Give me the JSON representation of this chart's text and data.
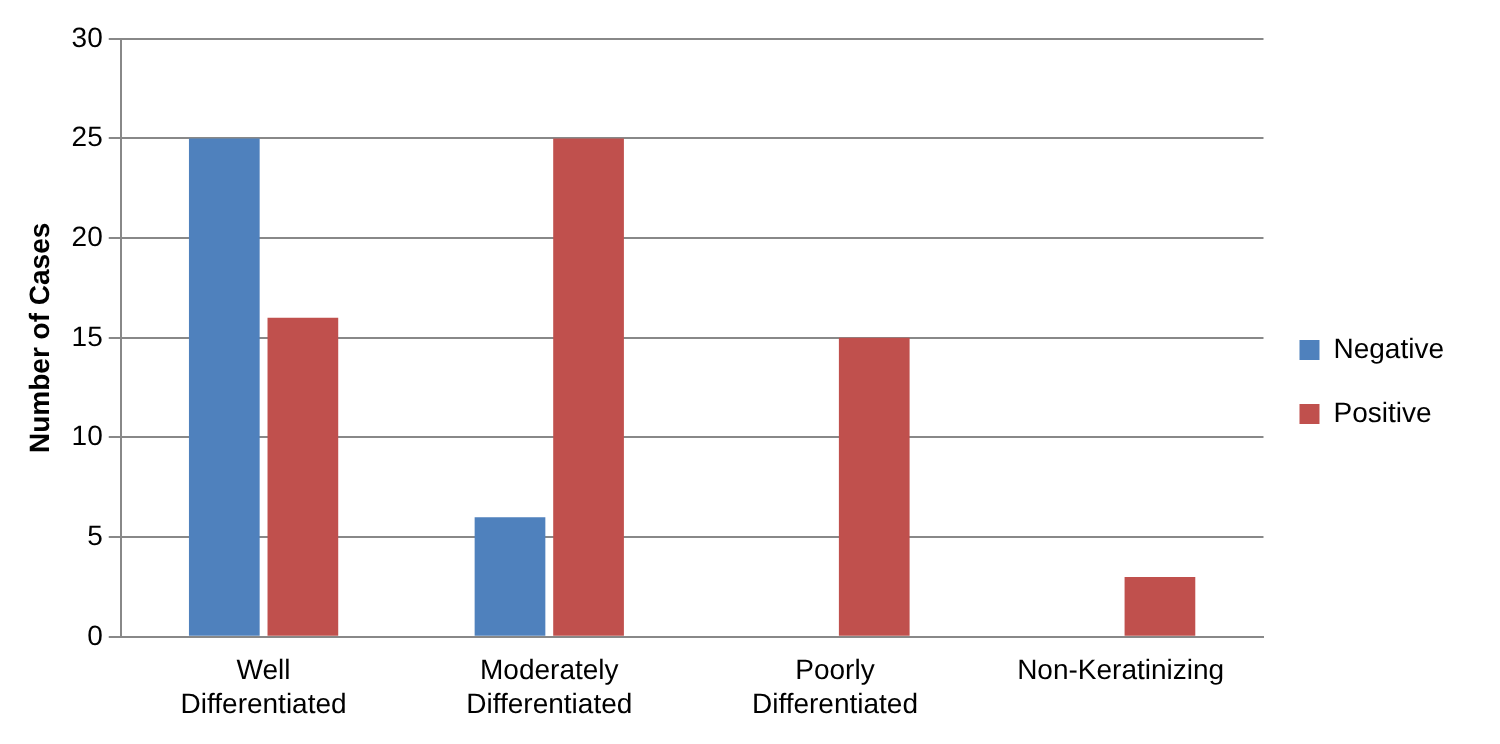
{
  "chart_data": {
    "type": "bar",
    "ylabel": "Number of Cases",
    "categories": [
      "Well Differentiated",
      "Moderately Differentiated",
      "Poorly Differentiated",
      "Non-Keratinizing"
    ],
    "series": [
      {
        "name": "Negative",
        "color": "#4f81bd",
        "values": [
          25,
          6,
          0,
          0
        ]
      },
      {
        "name": "Positive",
        "color": "#c0504d",
        "values": [
          16,
          25,
          15,
          3
        ]
      }
    ],
    "ylim": [
      0,
      30
    ],
    "yticks": [
      0,
      5,
      10,
      15,
      20,
      25,
      30
    ],
    "grid": "y",
    "legend": "right"
  }
}
